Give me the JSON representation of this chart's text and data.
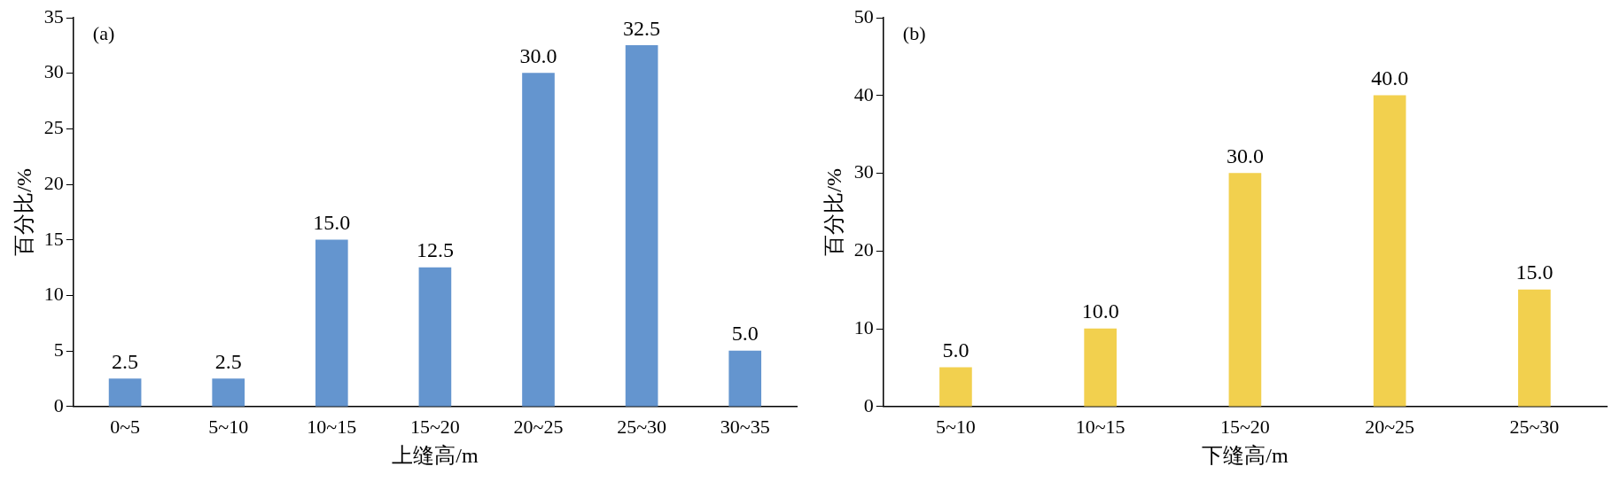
{
  "chart_data": [
    {
      "type": "bar",
      "xlabel": "上缝高/m",
      "ylabel": "百分比/%",
      "annotations": [
        "(a)"
      ],
      "categories": [
        "0~5",
        "5~10",
        "10~15",
        "15~20",
        "20~25",
        "25~30",
        "30~35"
      ],
      "values": [
        2.5,
        2.5,
        15.0,
        12.5,
        30.0,
        32.5,
        5.0
      ],
      "color": "#6495cf",
      "ylim": [
        0,
        35
      ],
      "yticks": [
        0,
        5,
        10,
        15,
        20,
        25,
        30,
        35
      ],
      "value_labels": [
        "2.5",
        "2.5",
        "15.0",
        "12.5",
        "30.0",
        "32.5",
        "5.0"
      ],
      "grid": false,
      "legend": false
    },
    {
      "type": "bar",
      "xlabel": "下缝高/m",
      "ylabel": "百分比/%",
      "annotations": [
        "(b)"
      ],
      "categories": [
        "5~10",
        "10~15",
        "15~20",
        "20~25",
        "25~30"
      ],
      "values": [
        5.0,
        10.0,
        30.0,
        40.0,
        15.0
      ],
      "color": "#f2d04e",
      "ylim": [
        0,
        50
      ],
      "yticks": [
        0,
        10,
        20,
        30,
        40,
        50
      ],
      "value_labels": [
        "5.0",
        "10.0",
        "30.0",
        "40.0",
        "15.0"
      ],
      "grid": false,
      "legend": false
    }
  ]
}
